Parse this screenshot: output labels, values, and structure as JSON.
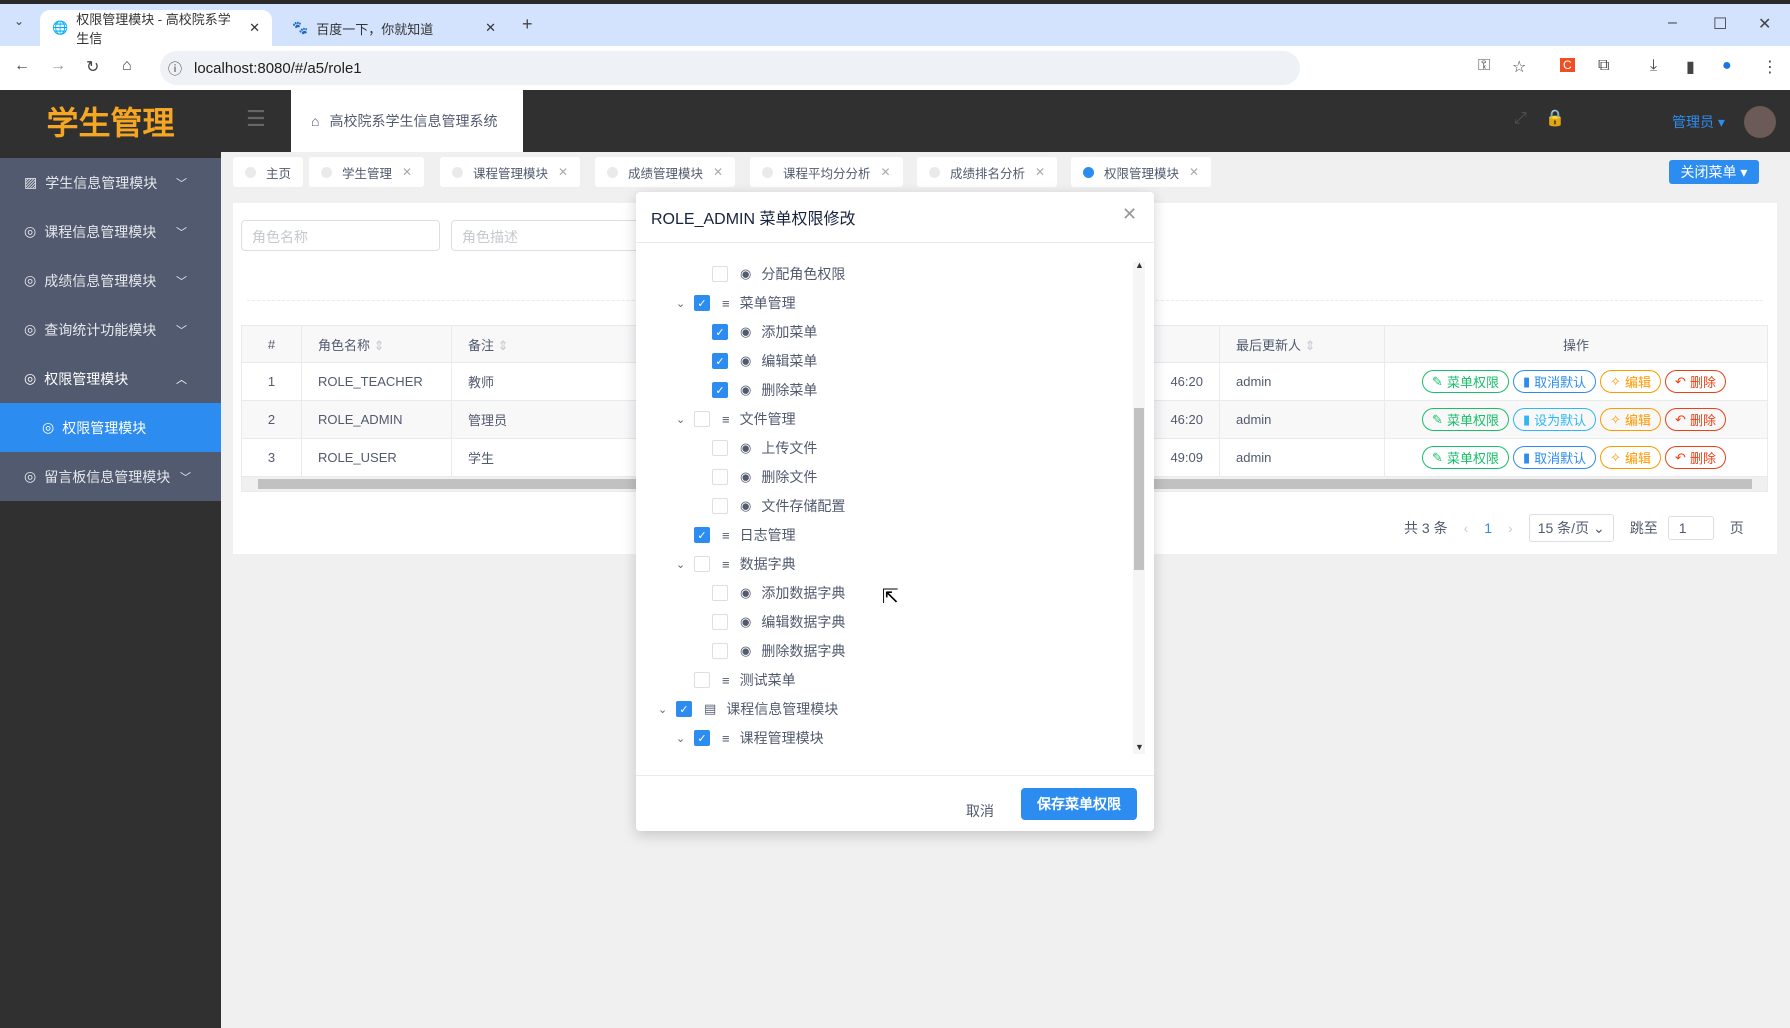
{
  "browser": {
    "tabs": [
      {
        "title": "权限管理模块 - 高校院系学生信"
      },
      {
        "title": "百度一下，你就知道"
      }
    ],
    "url": "localhost:8080/#/a5/role1"
  },
  "app": {
    "logo": "学生管理",
    "breadcrumb": "高校院系学生信息管理系统",
    "user": "管理员"
  },
  "sidebar": {
    "items": [
      {
        "label": "学生信息管理模块"
      },
      {
        "label": "课程信息管理模块"
      },
      {
        "label": "成绩信息管理模块"
      },
      {
        "label": "查询统计功能模块"
      },
      {
        "label": "权限管理模块"
      },
      {
        "label": "权限管理模块",
        "active": true
      },
      {
        "label": "留言板信息管理模块"
      }
    ]
  },
  "tags": {
    "items": [
      "主页",
      "学生管理",
      "课程管理模块",
      "成绩管理模块",
      "课程平均分分析",
      "成绩排名分析",
      "权限管理模块"
    ],
    "close_menu": "关闭菜单",
    "accent": "#2d8cf0"
  },
  "search": {
    "role_name_placeholder": "角色名称",
    "role_desc_placeholder": "角色描述"
  },
  "table": {
    "headers": [
      "#",
      "角色名称",
      "备注",
      "最后更新人",
      "操作"
    ],
    "rows": [
      {
        "n": "1",
        "name": "ROLE_TEACHER",
        "note": "教师",
        "time": "46:20",
        "user": "admin",
        "default_btn": "取消默认"
      },
      {
        "n": "2",
        "name": "ROLE_ADMIN",
        "note": "管理员",
        "time": "46:20",
        "user": "admin",
        "default_btn": "设为默认"
      },
      {
        "n": "3",
        "name": "ROLE_USER",
        "note": "学生",
        "time": "49:09",
        "user": "admin",
        "default_btn": "取消默认"
      }
    ],
    "menu_perm": "菜单权限",
    "edit": "编辑",
    "delete": "删除"
  },
  "pagination": {
    "total": "共 3 条",
    "page": "1",
    "page_size": "15 条/页",
    "goto": "跳至",
    "goto_value": "1",
    "page_unit": "页"
  },
  "modal": {
    "title": "ROLE_ADMIN 菜单权限修改",
    "cancel": "取消",
    "save": "保存菜单权限",
    "tree": [
      {
        "label": "分配角色权限",
        "level": 3,
        "checked": false
      },
      {
        "label": "菜单管理",
        "level": 2,
        "checked": true,
        "expand": true
      },
      {
        "label": "添加菜单",
        "level": 3,
        "checked": true
      },
      {
        "label": "编辑菜单",
        "level": 3,
        "checked": true
      },
      {
        "label": "删除菜单",
        "level": 3,
        "checked": true
      },
      {
        "label": "文件管理",
        "level": 2,
        "checked": false,
        "expand": true
      },
      {
        "label": "上传文件",
        "level": 3,
        "checked": false
      },
      {
        "label": "删除文件",
        "level": 3,
        "checked": false
      },
      {
        "label": "文件存储配置",
        "level": 3,
        "checked": false
      },
      {
        "label": "日志管理",
        "level": 2,
        "checked": true
      },
      {
        "label": "数据字典",
        "level": 2,
        "checked": false,
        "expand": true
      },
      {
        "label": "添加数据字典",
        "level": 3,
        "checked": false
      },
      {
        "label": "编辑数据字典",
        "level": 3,
        "checked": false
      },
      {
        "label": "删除数据字典",
        "level": 3,
        "checked": false
      },
      {
        "label": "测试菜单",
        "level": 2,
        "checked": false
      },
      {
        "label": "课程信息管理模块",
        "level": 1,
        "checked": true,
        "expand": true
      },
      {
        "label": "课程管理模块",
        "level": 2,
        "checked": true,
        "expand": true
      }
    ]
  }
}
